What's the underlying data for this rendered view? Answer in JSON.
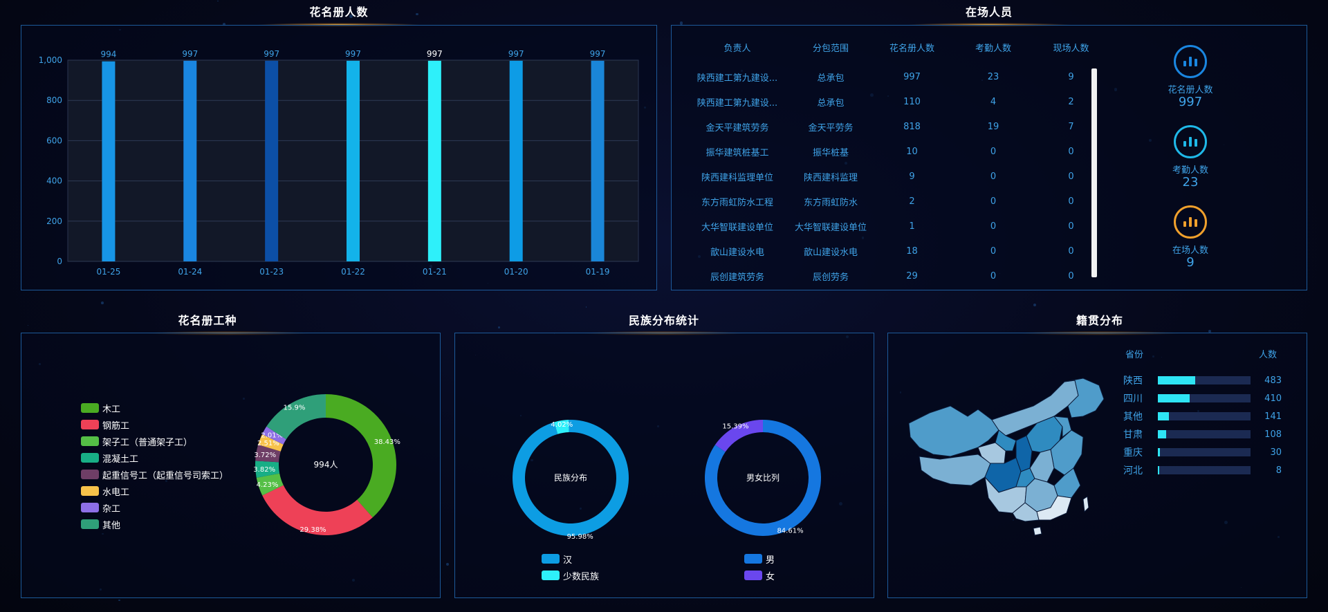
{
  "roster_chart": {
    "title": "花名册人数",
    "chart_data": {
      "type": "bar",
      "categories": [
        "01-25",
        "01-24",
        "01-23",
        "01-22",
        "01-21",
        "01-20",
        "01-19"
      ],
      "values": [
        994,
        997,
        997,
        997,
        997,
        997,
        997
      ],
      "colors": [
        "#1795e6",
        "#1a86e0",
        "#0c4fa6",
        "#13b3ea",
        "#2ef0fa",
        "#0d9ce6",
        "#1a86d8"
      ],
      "ylim": [
        0,
        1000
      ],
      "yticks": [
        "0",
        "200",
        "400",
        "600",
        "800",
        "1,000"
      ],
      "ytick_values": [
        0,
        200,
        400,
        600,
        800,
        1000
      ],
      "grid": true
    }
  },
  "onsite": {
    "title": "在场人员",
    "headers": [
      "负责人",
      "分包范围",
      "花名册人数",
      "考勤人数",
      "现场人数"
    ],
    "rows": [
      [
        "陕西建工第九建设...",
        "总承包",
        "997",
        "23",
        "9"
      ],
      [
        "陕西建工第九建设...",
        "总承包",
        "110",
        "4",
        "2"
      ],
      [
        "金天平建筑劳务",
        "金天平劳务",
        "818",
        "19",
        "7"
      ],
      [
        "振华建筑桩基工",
        "振华桩基",
        "10",
        "0",
        "0"
      ],
      [
        "陕西建科监理单位",
        "陕西建科监理",
        "9",
        "0",
        "0"
      ],
      [
        "东方雨虹防水工程",
        "东方雨虹防水",
        "2",
        "0",
        "0"
      ],
      [
        "大华智联建设单位",
        "大华智联建设单位",
        "1",
        "0",
        "0"
      ],
      [
        "歆山建设水电",
        "歆山建设水电",
        "18",
        "0",
        "0"
      ],
      [
        "辰创建筑劳务",
        "辰创劳务",
        "29",
        "0",
        "0"
      ]
    ],
    "stats": [
      {
        "label": "花名册人数",
        "value": "997",
        "icon": "bar-chart-icon",
        "color": "#1a86e0"
      },
      {
        "label": "考勤人数",
        "value": "23",
        "icon": "bar-chart-icon",
        "color": "#1fb8e8"
      },
      {
        "label": "在场人数",
        "value": "9",
        "icon": "bar-chart-icon",
        "color": "#f0a02c"
      }
    ]
  },
  "work_types": {
    "title": "花名册工种",
    "center_label": "994人",
    "chart_data": {
      "type": "pie",
      "categories": [
        "木工",
        "钢筋工",
        "架子工（普通架子工）",
        "混凝土工",
        "起重信号工（起重信号司索工）",
        "水电工",
        "杂工",
        "其他"
      ],
      "values": [
        38.43,
        29.38,
        4.23,
        3.82,
        3.72,
        2.51,
        2.01,
        15.9
      ],
      "labels": [
        "38.43%",
        "29.38%",
        "4.23%",
        "3.82%",
        "3.72%",
        "2.51%",
        "2.01%",
        "15.9%"
      ],
      "colors": [
        "#4aab22",
        "#ee4157",
        "#55bf46",
        "#18ae86",
        "#6e3e66",
        "#f7c24a",
        "#8d6fe6",
        "#2f9f79"
      ]
    }
  },
  "ethnic": {
    "title": "民族分布统计",
    "charts": [
      {
        "type": "pie",
        "center_label": "民族分布",
        "categories": [
          "汉",
          "少数民族"
        ],
        "values": [
          95.98,
          4.02
        ],
        "labels": [
          "95.98%",
          "4.02%"
        ],
        "colors": [
          "#0d9de3",
          "#2ef0fa"
        ]
      },
      {
        "type": "pie",
        "center_label": "男女比列",
        "categories": [
          "男",
          "女"
        ],
        "values": [
          84.61,
          15.39
        ],
        "labels": [
          "84.61%",
          "15.39%"
        ],
        "colors": [
          "#1577e0",
          "#6a47ee"
        ]
      }
    ]
  },
  "native_place": {
    "title": "籍贯分布",
    "col_province": "省份",
    "col_count": "人数",
    "items": [
      {
        "name": "陕西",
        "value": 483
      },
      {
        "name": "四川",
        "value": 410
      },
      {
        "name": "其他",
        "value": 141
      },
      {
        "name": "甘肃",
        "value": 108
      },
      {
        "name": "重庆",
        "value": 30
      },
      {
        "name": "河北",
        "value": 8
      }
    ],
    "max": 1200,
    "map_colors": [
      "#0f65a8",
      "#2f8bc0",
      "#4f9cca",
      "#7bb0d3",
      "#a7c8e0",
      "#dce9f3"
    ]
  }
}
